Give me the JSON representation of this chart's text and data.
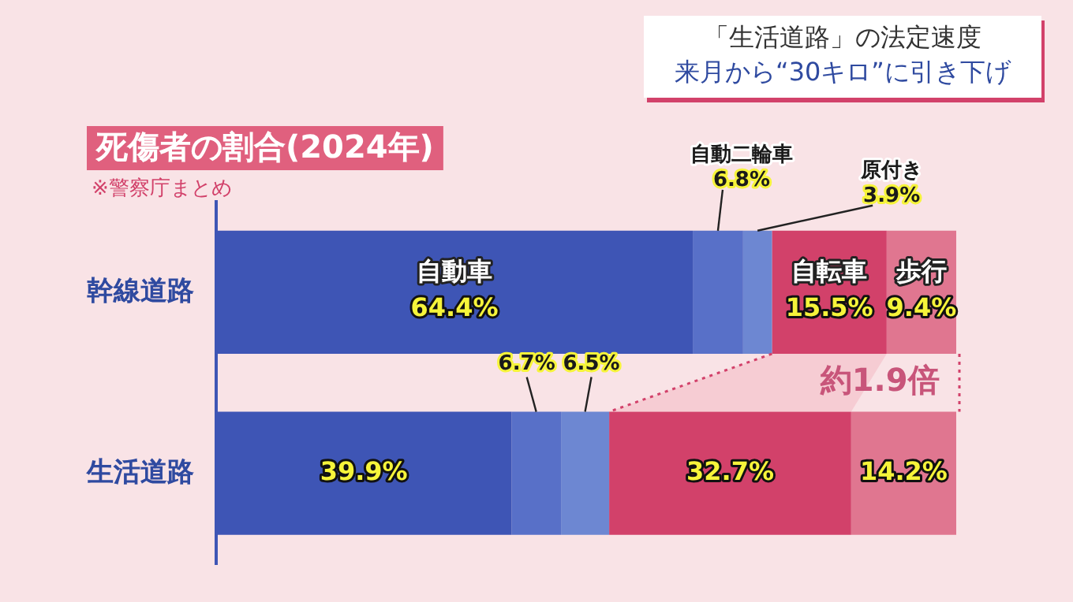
{
  "chart_data": {
    "type": "bar",
    "orientation": "horizontal",
    "stacked": true,
    "title": "死傷者の割合(2024年)",
    "subtitle": "※警察庁まとめ",
    "annotations": [
      "「生活道路」の法定速度",
      "来月から“30キロ”に引き下げ",
      "約1.9倍"
    ],
    "categories": [
      "幹線道路",
      "生活道路"
    ],
    "series": [
      {
        "name": "自動車",
        "color": "#3e55b5",
        "values": [
          64.4,
          39.9
        ],
        "value_labels": [
          "64.4%",
          "39.9%"
        ]
      },
      {
        "name": "自動二輪車",
        "color": "#5870c8",
        "values": [
          6.8,
          6.7
        ],
        "value_labels": [
          "6.8%",
          "6.7%"
        ]
      },
      {
        "name": "原付き",
        "color": "#6d87d2",
        "values": [
          3.9,
          6.5
        ],
        "value_labels": [
          "3.9%",
          "6.5%"
        ]
      },
      {
        "name": "自転車",
        "color": "#d2416a",
        "values": [
          15.5,
          32.7
        ],
        "value_labels": [
          "15.5%",
          "32.7%"
        ]
      },
      {
        "name": "歩行",
        "color": "#e07690",
        "values": [
          9.4,
          14.2
        ],
        "value_labels": [
          "9.4%",
          "14.2%"
        ]
      }
    ],
    "xlim": [
      0,
      100
    ],
    "tick_labels": "y",
    "grid": false,
    "legend": false
  }
}
